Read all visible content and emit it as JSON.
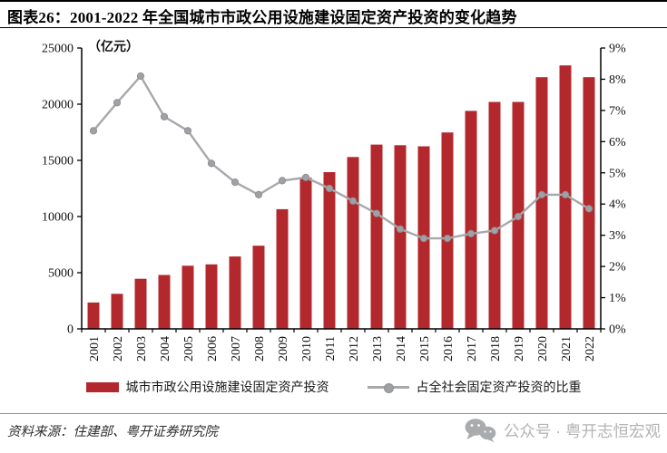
{
  "header": {
    "title": "图表26：2001-2022 年全国城市市政公用设施建设固定资产投资的变化趋势"
  },
  "chart_data": {
    "type": "bar",
    "combo": "bar+line",
    "title": "2001-2022 年全国城市市政公用设施建设固定资产投资的变化趋势",
    "categories": [
      "2001",
      "2002",
      "2003",
      "2004",
      "2005",
      "2006",
      "2007",
      "2008",
      "2009",
      "2010",
      "2011",
      "2012",
      "2013",
      "2014",
      "2015",
      "2016",
      "2017",
      "2018",
      "2019",
      "2020",
      "2021",
      "2022"
    ],
    "series": [
      {
        "name": "城市市政公用设施建设固定资产投资",
        "type": "bar",
        "axis": "left",
        "color": "#b3282d",
        "values": [
          2350,
          3120,
          4460,
          4800,
          5620,
          5740,
          6440,
          7400,
          10650,
          13450,
          13950,
          15300,
          16400,
          16350,
          16250,
          17480,
          19400,
          20200,
          20200,
          22400,
          23450,
          22400
        ]
      },
      {
        "name": "占全社会固定资产投资的比重",
        "type": "line",
        "axis": "right",
        "color": "#a7a8aa",
        "marker_color": "#9fa1a4",
        "values": [
          6.35,
          7.25,
          8.1,
          6.8,
          6.35,
          5.3,
          4.7,
          4.3,
          4.75,
          4.85,
          4.5,
          4.1,
          3.7,
          3.2,
          2.9,
          2.9,
          3.05,
          3.15,
          3.6,
          4.3,
          4.3,
          3.85
        ]
      }
    ],
    "left_axis": {
      "label": "（亿元）",
      "min": 0,
      "max": 25000,
      "step": 5000
    },
    "right_axis": {
      "min": 0,
      "max": 9,
      "step": 1,
      "suffix": "%"
    },
    "grid": false,
    "legend_position": "bottom"
  },
  "footer": {
    "source": "资料来源：住建部、粤开证券研究院",
    "wechat_label": "公众号 · 粤开志恒宏观"
  },
  "colors": {
    "bar_red": "#b3282d",
    "line_gray": "#a7a8aa",
    "footer_gray": "#b4b4b4"
  }
}
